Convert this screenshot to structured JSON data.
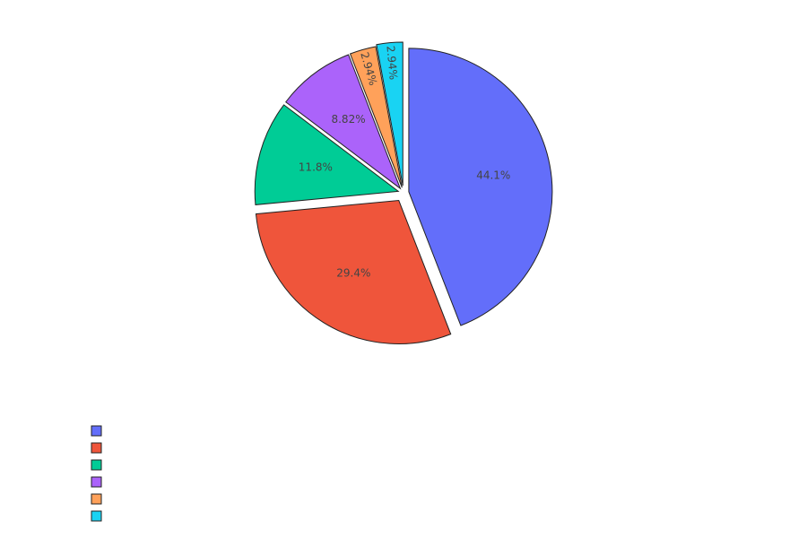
{
  "chart_data": {
    "type": "pie",
    "title": "",
    "legend_placement": "bottom-left",
    "slices": [
      {
        "value": 44.1,
        "label": "44.1%",
        "color": "#636efa",
        "label_color": "#ffffff"
      },
      {
        "value": 29.4,
        "label": "29.4%",
        "color": "#ef553b",
        "label_color": "#444444"
      },
      {
        "value": 11.8,
        "label": "11.8%",
        "color": "#00cc96",
        "label_color": "#444444"
      },
      {
        "value": 8.82,
        "label": "8.82%",
        "color": "#ab63fa",
        "label_color": "#444444"
      },
      {
        "value": 2.94,
        "label": "2.94%",
        "color": "#ffa15a",
        "label_color": "#444444"
      },
      {
        "value": 2.94,
        "label": "2.94%",
        "color": "#19d3f3",
        "label_color": "#444444"
      }
    ]
  }
}
